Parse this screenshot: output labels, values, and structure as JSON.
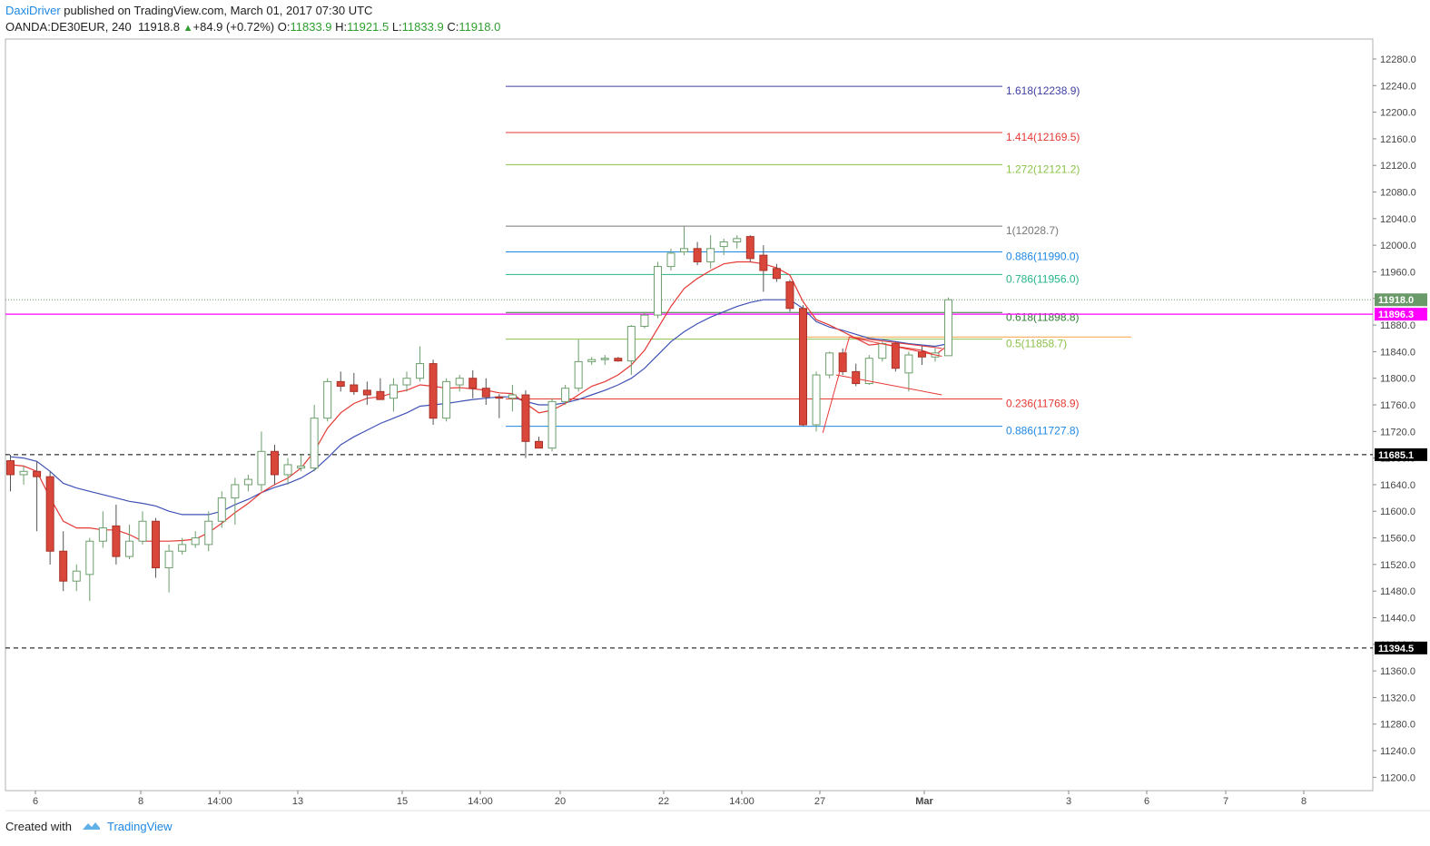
{
  "header": {
    "user": "DaxiDriver",
    "published_text": "published on TradingView.com, March 01, 2017 07:30 UTC",
    "symbol": "OANDA:DE30EUR, 240",
    "last": "11918.8",
    "change": "+84.9 (+0.72%)",
    "o_label": "O:",
    "o_value": "11833.9",
    "h_label": "H:",
    "h_value": "11921.5",
    "l_label": "L:",
    "l_value": "11833.9",
    "c_label": "C:",
    "c_value": "11918.0"
  },
  "footer": {
    "created_with": "Created with",
    "brand": "TradingView"
  },
  "colors": {
    "up_fill": "#ffffff",
    "up_border": "#6b9e6b",
    "down_fill": "#d9463a",
    "down_border": "#a83228",
    "ema_fast": "#e53935",
    "ema_slow": "#3f51b5",
    "magenta": "#ff00ff",
    "price_tag": "#6a9a6a"
  },
  "chart_data": {
    "type": "candlestick",
    "symbol": "OANDA:DE30EUR",
    "timeframe": "240",
    "ylim": [
      11180,
      12310
    ],
    "y_ticks": [
      11200,
      11240,
      11280,
      11320,
      11360,
      11400,
      11440,
      11480,
      11520,
      11560,
      11600,
      11640,
      11680,
      11720,
      11760,
      11800,
      11840,
      11880,
      11920,
      11960,
      12000,
      12040,
      12080,
      12120,
      12160,
      12200,
      12240,
      12280
    ],
    "x_labels": [
      "6",
      "8",
      "14:00",
      "13",
      "15",
      "14:00",
      "20",
      "22",
      "14:00",
      "27",
      "Mar",
      "3",
      "6",
      "7",
      "8"
    ],
    "candles": [
      [
        11676,
        11685,
        11630,
        11655
      ],
      [
        11655,
        11668,
        11640,
        11660
      ],
      [
        11660,
        11675,
        11570,
        11652
      ],
      [
        11652,
        11660,
        11520,
        11540
      ],
      [
        11540,
        11570,
        11480,
        11495
      ],
      [
        11495,
        11520,
        11480,
        11510
      ],
      [
        11505,
        11560,
        11465,
        11555
      ],
      [
        11555,
        11600,
        11545,
        11575
      ],
      [
        11578,
        11610,
        11520,
        11532
      ],
      [
        11532,
        11580,
        11528,
        11555
      ],
      [
        11555,
        11600,
        11550,
        11585
      ],
      [
        11585,
        11590,
        11500,
        11515
      ],
      [
        11515,
        11550,
        11478,
        11540
      ],
      [
        11540,
        11560,
        11535,
        11550
      ],
      [
        11550,
        11570,
        11545,
        11560
      ],
      [
        11550,
        11600,
        11540,
        11585
      ],
      [
        11585,
        11630,
        11575,
        11620
      ],
      [
        11620,
        11650,
        11580,
        11640
      ],
      [
        11640,
        11655,
        11630,
        11648
      ],
      [
        11640,
        11720,
        11630,
        11690
      ],
      [
        11690,
        11700,
        11640,
        11655
      ],
      [
        11655,
        11680,
        11640,
        11670
      ],
      [
        11665,
        11685,
        11660,
        11668
      ],
      [
        11665,
        11760,
        11660,
        11740
      ],
      [
        11740,
        11800,
        11735,
        11795
      ],
      [
        11795,
        11810,
        11780,
        11788
      ],
      [
        11790,
        11808,
        11775,
        11780
      ],
      [
        11782,
        11795,
        11760,
        11775
      ],
      [
        11780,
        11800,
        11770,
        11768
      ],
      [
        11770,
        11800,
        11750,
        11790
      ],
      [
        11790,
        11810,
        11780,
        11800
      ],
      [
        11800,
        11848,
        11795,
        11822
      ],
      [
        11822,
        11828,
        11730,
        11740
      ],
      [
        11740,
        11800,
        11735,
        11795
      ],
      [
        11790,
        11805,
        11780,
        11800
      ],
      [
        11800,
        11812,
        11770,
        11785
      ],
      [
        11785,
        11800,
        11760,
        11772
      ],
      [
        11772,
        11776,
        11740,
        11770
      ],
      [
        11770,
        11790,
        11750,
        11775
      ],
      [
        11775,
        11782,
        11680,
        11705
      ],
      [
        11705,
        11712,
        11695,
        11695
      ],
      [
        11695,
        11770,
        11690,
        11765
      ],
      [
        11765,
        11790,
        11760,
        11785
      ],
      [
        11785,
        11858,
        11780,
        11825
      ],
      [
        11825,
        11832,
        11820,
        11828
      ],
      [
        11828,
        11835,
        11820,
        11830
      ],
      [
        11830,
        11832,
        11825,
        11826
      ],
      [
        11826,
        11880,
        11805,
        11878
      ],
      [
        11878,
        11900,
        11875,
        11895
      ],
      [
        11895,
        11975,
        11890,
        11968
      ],
      [
        11968,
        11995,
        11962,
        11988
      ],
      [
        11990,
        12028,
        11985,
        11995
      ],
      [
        11995,
        12005,
        11970,
        11975
      ],
      [
        11975,
        12015,
        11965,
        11995
      ],
      [
        11998,
        12010,
        11985,
        12005
      ],
      [
        12005,
        12015,
        11995,
        12010
      ],
      [
        12013,
        12015,
        11975,
        11980
      ],
      [
        11985,
        12000,
        11930,
        11962
      ],
      [
        11965,
        11972,
        11945,
        11950
      ],
      [
        11945,
        11948,
        11900,
        11905
      ],
      [
        11905,
        11910,
        11728,
        11730
      ],
      [
        11730,
        11810,
        11720,
        11805
      ],
      [
        11805,
        11840,
        11800,
        11838
      ],
      [
        11838,
        11845,
        11805,
        11810
      ],
      [
        11810,
        11822,
        11788,
        11792
      ],
      [
        11792,
        11835,
        11790,
        11830
      ],
      [
        11830,
        11855,
        11825,
        11852
      ],
      [
        11852,
        11855,
        11810,
        11815
      ],
      [
        11808,
        11840,
        11780,
        11835
      ],
      [
        11840,
        11848,
        11820,
        11832
      ],
      [
        11832,
        11845,
        11825,
        11838
      ],
      [
        11833.9,
        11921.5,
        11833.9,
        11918
      ]
    ],
    "ema_fast": [
      11670,
      11668,
      11660,
      11620,
      11585,
      11575,
      11575,
      11572,
      11572,
      11565,
      11555,
      11555,
      11555,
      11556,
      11558,
      11568,
      11582,
      11598,
      11612,
      11628,
      11640,
      11650,
      11665,
      11690,
      11725,
      11748,
      11762,
      11770,
      11772,
      11778,
      11782,
      11790,
      11788,
      11785,
      11786,
      11784,
      11782,
      11778,
      11777,
      11762,
      11748,
      11752,
      11762,
      11775,
      11788,
      11795,
      11805,
      11820,
      11842,
      11875,
      11908,
      11935,
      11950,
      11962,
      11972,
      11975,
      11975,
      11972,
      11966,
      11955,
      11915,
      11888,
      11880,
      11870,
      11860,
      11850,
      11852,
      11848,
      11845,
      11842,
      11835,
      11850
    ],
    "ema_slow": [
      11682,
      11680,
      11675,
      11660,
      11642,
      11635,
      11630,
      11625,
      11620,
      11615,
      11612,
      11608,
      11600,
      11595,
      11595,
      11595,
      11600,
      11610,
      11618,
      11628,
      11636,
      11642,
      11650,
      11662,
      11680,
      11700,
      11712,
      11722,
      11732,
      11740,
      11748,
      11758,
      11760,
      11762,
      11765,
      11768,
      11770,
      11772,
      11772,
      11765,
      11760,
      11760,
      11763,
      11768,
      11775,
      11782,
      11790,
      11800,
      11815,
      11835,
      11855,
      11870,
      11882,
      11892,
      11900,
      11908,
      11914,
      11918,
      11918,
      11918,
      11905,
      11885,
      11877,
      11872,
      11866,
      11860,
      11858,
      11855,
      11852,
      11850,
      11848,
      11852
    ],
    "fib_levels": [
      {
        "ratio": "1.618",
        "value": "12238.9",
        "color": "#3f3fa0"
      },
      {
        "ratio": "1.414",
        "value": "12169.5",
        "color": "#e53935"
      },
      {
        "ratio": "1.272",
        "value": "12121.2",
        "color": "#8bc34a"
      },
      {
        "ratio": "1",
        "value": "12028.7",
        "color": "#777777"
      },
      {
        "ratio": "0.886",
        "value": "11990.0",
        "color": "#1e88e5"
      },
      {
        "ratio": "0.786",
        "value": "11956.0",
        "color": "#26b38a"
      },
      {
        "ratio": "0.618",
        "value": "11898.8",
        "color": "#2e7d32"
      },
      {
        "ratio": "0.5",
        "value": "11858.7",
        "color": "#8bc34a"
      },
      {
        "ratio": "0.236",
        "value": "11768.9",
        "color": "#e53935"
      },
      {
        "ratio": "0.886",
        "value": "11727.8",
        "color": "#1e88e5"
      }
    ],
    "horizontal_lines": [
      {
        "value": 11685.1,
        "label": "11685.1",
        "style": "dashed",
        "color": "#000000"
      },
      {
        "value": 11394.5,
        "label": "11394.5",
        "style": "dashed",
        "color": "#000000"
      },
      {
        "value": 11896.3,
        "label": "11896.3",
        "style": "solid",
        "color": "#ff00ff"
      },
      {
        "value": 11918.0,
        "label": "11918.0",
        "style": "dotted",
        "color": "#6a9a6a"
      }
    ],
    "orange_level": 11862,
    "pattern_lines": [
      [
        [
          61.5,
          11718
        ],
        [
          63.5,
          11862
        ],
        [
          70.5,
          11833
        ]
      ],
      [
        [
          62.5,
          11805
        ],
        [
          70.5,
          11775
        ]
      ],
      [
        [
          63.5,
          11862
        ],
        [
          70.5,
          11845
        ]
      ]
    ]
  }
}
